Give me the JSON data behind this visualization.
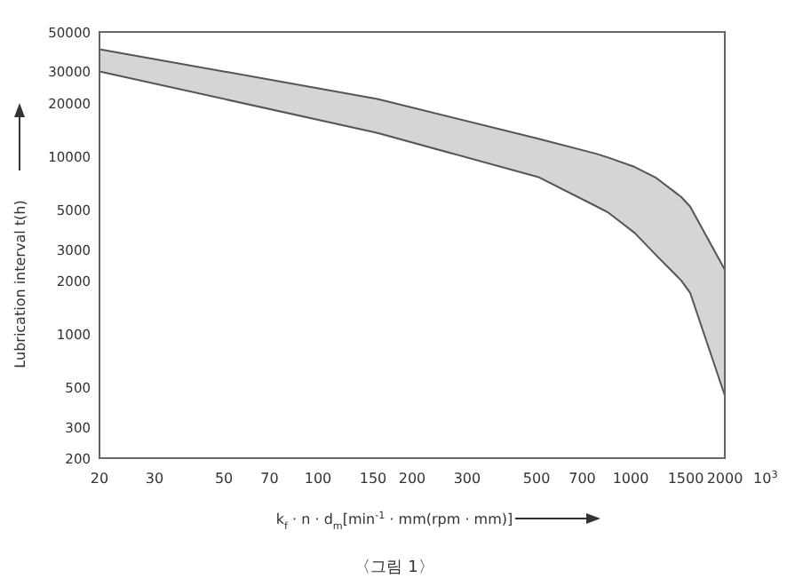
{
  "chart_data": {
    "type": "area",
    "xlabel": "k$_{f}$ · n · d$_{m}$[min$^{-1}$ · mm(rpm · mm)]",
    "ylabel": "Lubrication interval  t(h)",
    "log": "xy",
    "grid": false,
    "xlim": [
      20,
      2000
    ],
    "ylim": [
      200,
      50000
    ],
    "xticks": [
      20,
      30,
      50,
      70,
      100,
      150,
      200,
      300,
      500,
      700,
      1000,
      1500,
      2000
    ],
    "yticks": [
      200,
      300,
      500,
      1000,
      2000,
      3000,
      5000,
      10000,
      20000,
      30000,
      50000
    ],
    "series": [
      {
        "color": "#555555",
        "x": [
          20,
          155,
          510,
          780,
          850,
          1030,
          1200,
          1450,
          1550,
          2000
        ],
        "values": [
          40000,
          21000,
          12500,
          10300,
          9800,
          8700,
          7600,
          5900,
          5200,
          2300
        ]
      },
      {
        "type": "line",
        "color": "#555555",
        "x": [
          20,
          155,
          510,
          780,
          850,
          1030,
          1200,
          1450,
          1550,
          2000
        ],
        "values": [
          30000,
          13500,
          7600,
          5200,
          4800,
          3700,
          2800,
          2000,
          1700,
          450
        ]
      }
    ],
    "annotations": [
      "10$^{3}$",
      "〈그림 1〉"
    ]
  }
}
